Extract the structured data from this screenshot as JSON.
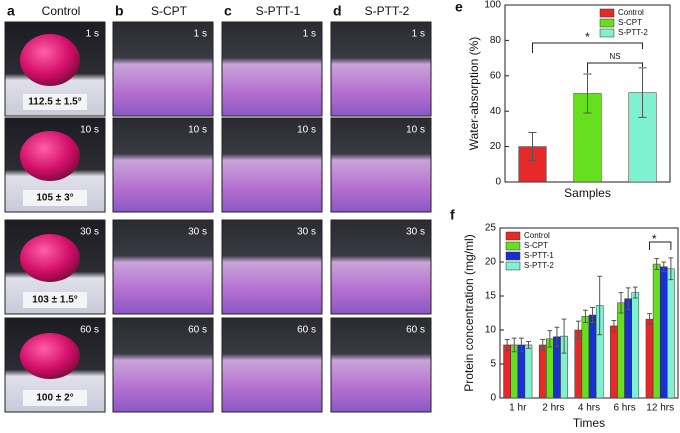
{
  "photo_panels": [
    {
      "letter": "a",
      "title": "Control",
      "times": [
        "1 s",
        "10 s",
        "30 s",
        "60 s"
      ],
      "angles": [
        "112.5 ± 1.5°",
        "105 ± 3°",
        "103 ± 1.5°",
        "100 ± 2°"
      ]
    },
    {
      "letter": "b",
      "title": "S-CPT",
      "times": [
        "1 s",
        "10 s",
        "30 s",
        "60 s"
      ]
    },
    {
      "letter": "c",
      "title": "S-PTT-1",
      "times": [
        "1 s",
        "10 s",
        "30 s",
        "60 s"
      ]
    },
    {
      "letter": "d",
      "title": "S-PTT-2",
      "times": [
        "1 s",
        "10 s",
        "30 s",
        "60 s"
      ]
    }
  ],
  "chart_data": [
    {
      "type": "bar",
      "letter": "e",
      "ylabel": "Water-absorption (%)",
      "xlabel": "Samples",
      "ylim": [
        0,
        100
      ],
      "yticks": [
        0,
        20,
        40,
        60,
        80,
        100
      ],
      "annotations": [
        "*",
        "NS"
      ],
      "series": [
        {
          "name": "Control",
          "color": "#e8292a",
          "values": [
            20
          ],
          "errors": [
            8
          ]
        },
        {
          "name": "S-CPT",
          "color": "#66e01e",
          "values": [
            50
          ],
          "errors": [
            11
          ]
        },
        {
          "name": "S-PTT-2",
          "color": "#7ff0d0",
          "values": [
            50.5
          ],
          "errors": [
            14
          ]
        }
      ]
    },
    {
      "type": "bar",
      "letter": "f",
      "ylabel": "Protein concentration (mg/ml)",
      "xlabel": "Times",
      "categories": [
        "1 hr",
        "2 hrs",
        "4 hrs",
        "6 hrs",
        "12 hrs"
      ],
      "ylim": [
        0,
        25
      ],
      "yticks": [
        0,
        5,
        10,
        15,
        20,
        25
      ],
      "annotations": [
        "*"
      ],
      "series": [
        {
          "name": "Control",
          "color": "#e8292a",
          "values": [
            7.8,
            7.8,
            10,
            10.6,
            11.6
          ],
          "errors": [
            0.8,
            0.8,
            1.3,
            0.8,
            0.8
          ]
        },
        {
          "name": "S-CPT",
          "color": "#66e01e",
          "values": [
            7.8,
            8.7,
            12,
            14,
            19.7
          ],
          "errors": [
            1,
            1.2,
            0.9,
            1.5,
            0.8
          ]
        },
        {
          "name": "S-PTT-1",
          "color": "#1a2fd0",
          "values": [
            7.8,
            9,
            12.2,
            14.6,
            19.3
          ],
          "errors": [
            1,
            1.4,
            1.1,
            1.6,
            0.7
          ]
        },
        {
          "name": "S-PTT-2",
          "color": "#7ff0d0",
          "values": [
            7.8,
            9.1,
            13.6,
            15.5,
            19
          ],
          "errors": [
            0.5,
            2.5,
            4.3,
            0.8,
            1.6
          ]
        }
      ]
    }
  ]
}
